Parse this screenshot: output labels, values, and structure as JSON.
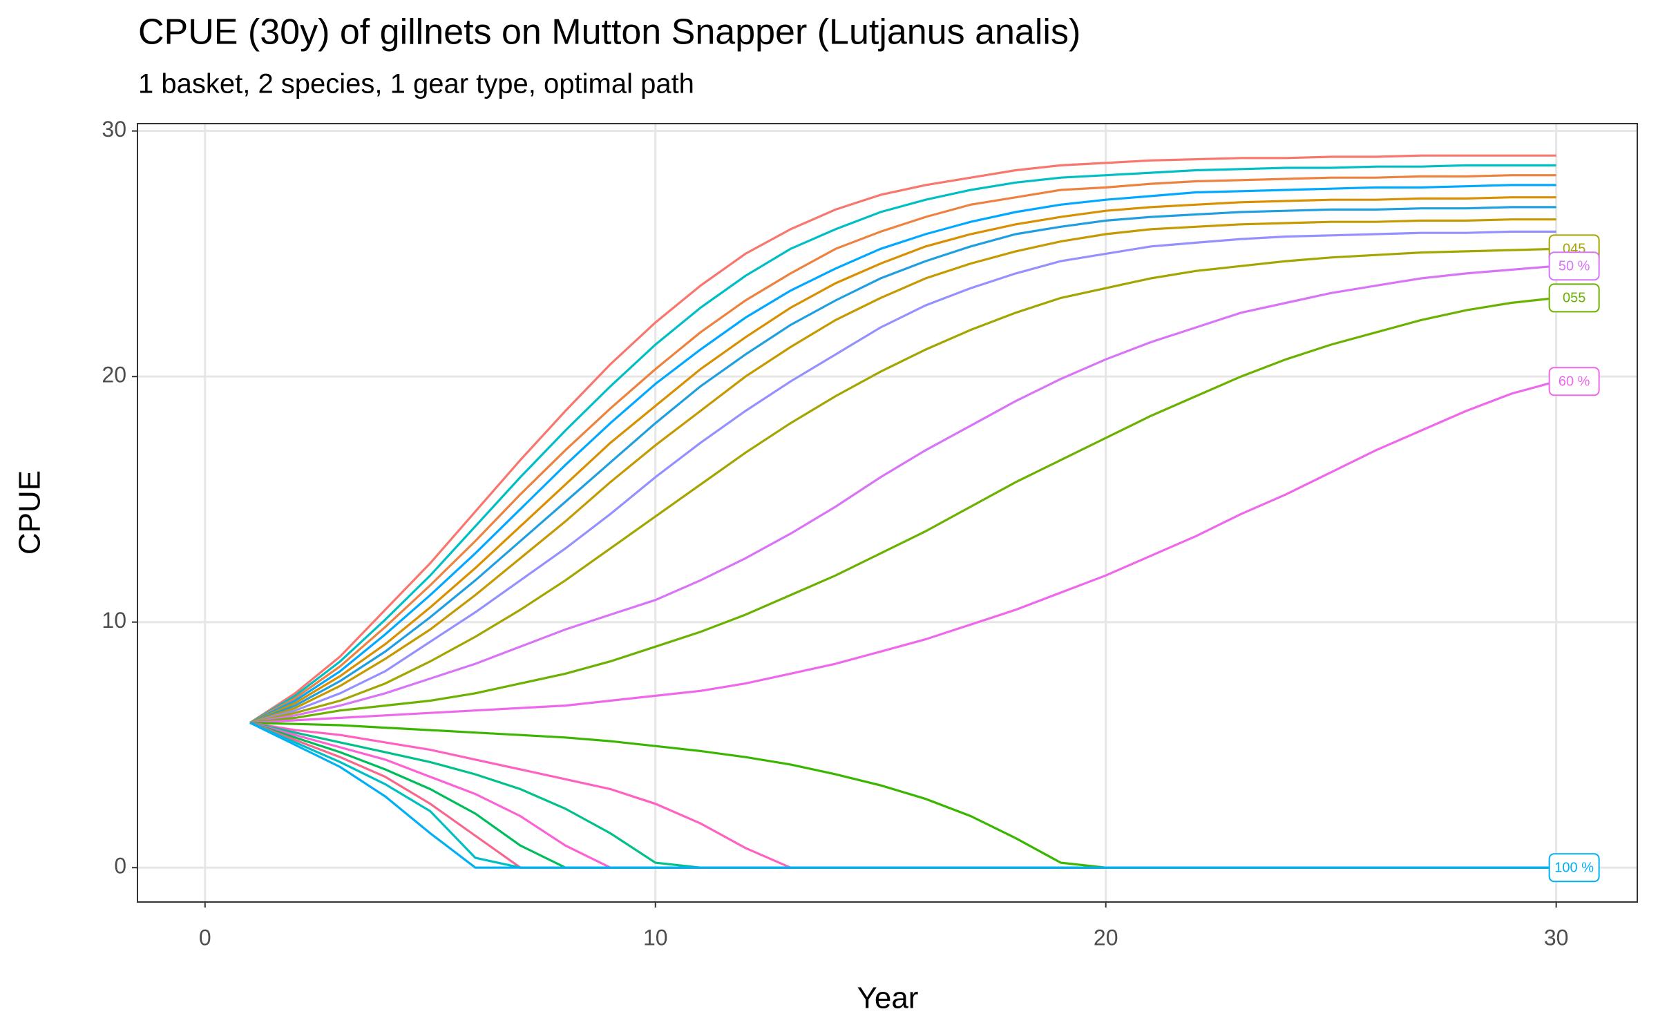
{
  "chart_data": {
    "type": "line",
    "title": "CPUE (30y) of gillnets on Mutton Snapper (Lutjanus analis)",
    "subtitle": "1 basket, 2 species, 1 gear type, optimal path",
    "x_label": "Year",
    "y_label": "CPUE",
    "xlim": [
      -1.5,
      31.8
    ],
    "xticks": [
      0,
      10,
      20,
      30
    ],
    "ylim": [
      -1.4,
      30.3
    ],
    "yticks": [
      0,
      10,
      20,
      30
    ],
    "grid": true,
    "x": [
      1,
      2,
      3,
      4,
      5,
      6,
      7,
      8,
      9,
      10,
      11,
      12,
      13,
      14,
      15,
      16,
      17,
      18,
      19,
      20,
      21,
      22,
      23,
      24,
      25,
      26,
      27,
      28,
      29,
      30
    ],
    "series": [
      {
        "color": "#f8766d",
        "values": [
          5.9,
          7.1,
          8.6,
          10.5,
          12.4,
          14.5,
          16.6,
          18.6,
          20.5,
          22.2,
          23.7,
          25.0,
          26.0,
          26.8,
          27.4,
          27.8,
          28.1,
          28.4,
          28.6,
          28.7,
          28.8,
          28.85,
          28.9,
          28.9,
          28.95,
          28.95,
          29.0,
          29.0,
          29.0,
          29.0
        ]
      },
      {
        "color": "#00bfc4",
        "values": [
          5.9,
          7.0,
          8.4,
          10.1,
          11.9,
          13.9,
          15.9,
          17.8,
          19.6,
          21.3,
          22.8,
          24.1,
          25.2,
          26.0,
          26.7,
          27.2,
          27.6,
          27.9,
          28.1,
          28.2,
          28.3,
          28.4,
          28.45,
          28.5,
          28.5,
          28.55,
          28.55,
          28.6,
          28.6,
          28.6
        ]
      },
      {
        "color": "#ed813e",
        "values": [
          5.9,
          6.9,
          8.2,
          9.8,
          11.5,
          13.3,
          15.2,
          17.0,
          18.7,
          20.3,
          21.8,
          23.1,
          24.2,
          25.2,
          25.9,
          26.5,
          27.0,
          27.3,
          27.6,
          27.7,
          27.85,
          27.95,
          28.0,
          28.05,
          28.1,
          28.1,
          28.15,
          28.15,
          28.2,
          28.2
        ]
      },
      {
        "color": "#00a9ff",
        "values": [
          5.9,
          6.8,
          8.0,
          9.5,
          11.1,
          12.8,
          14.6,
          16.4,
          18.1,
          19.7,
          21.1,
          22.4,
          23.5,
          24.4,
          25.2,
          25.8,
          26.3,
          26.7,
          27.0,
          27.2,
          27.35,
          27.5,
          27.55,
          27.6,
          27.65,
          27.7,
          27.7,
          27.75,
          27.8,
          27.8
        ]
      },
      {
        "color": "#d89000",
        "values": [
          5.9,
          6.7,
          7.8,
          9.1,
          10.6,
          12.2,
          13.9,
          15.6,
          17.3,
          18.8,
          20.3,
          21.6,
          22.8,
          23.8,
          24.6,
          25.3,
          25.8,
          26.2,
          26.5,
          26.75,
          26.9,
          27.0,
          27.1,
          27.15,
          27.2,
          27.2,
          27.25,
          27.25,
          27.3,
          27.3
        ]
      },
      {
        "color": "#1f9fe0",
        "values": [
          5.9,
          6.6,
          7.6,
          8.8,
          10.2,
          11.7,
          13.3,
          14.9,
          16.5,
          18.1,
          19.6,
          20.9,
          22.1,
          23.1,
          24.0,
          24.7,
          25.3,
          25.8,
          26.1,
          26.35,
          26.5,
          26.6,
          26.7,
          26.75,
          26.8,
          26.8,
          26.85,
          26.85,
          26.9,
          26.9
        ]
      },
      {
        "color": "#c59900",
        "values": [
          5.9,
          6.5,
          7.4,
          8.5,
          9.7,
          11.1,
          12.6,
          14.1,
          15.7,
          17.2,
          18.6,
          20.0,
          21.2,
          22.3,
          23.2,
          24.0,
          24.6,
          25.1,
          25.5,
          25.8,
          26.0,
          26.1,
          26.2,
          26.25,
          26.3,
          26.3,
          26.35,
          26.35,
          26.4,
          26.4
        ]
      },
      {
        "color": "#9590ff",
        "values": [
          5.9,
          6.4,
          7.1,
          8.0,
          9.2,
          10.4,
          11.7,
          13.0,
          14.4,
          15.9,
          17.3,
          18.6,
          19.8,
          20.9,
          22.0,
          22.9,
          23.6,
          24.2,
          24.7,
          25.0,
          25.3,
          25.45,
          25.6,
          25.7,
          25.75,
          25.8,
          25.85,
          25.85,
          25.9,
          25.9
        ]
      },
      {
        "name": "045",
        "color": "#a3a500",
        "values": [
          5.9,
          6.3,
          6.8,
          7.5,
          8.4,
          9.4,
          10.5,
          11.7,
          13.0,
          14.3,
          15.6,
          16.9,
          18.1,
          19.2,
          20.2,
          21.1,
          21.9,
          22.6,
          23.2,
          23.6,
          24.0,
          24.3,
          24.5,
          24.7,
          24.85,
          24.95,
          25.05,
          25.1,
          25.15,
          25.2
        ]
      },
      {
        "name": "50 %",
        "color": "#d874f5",
        "values": [
          5.9,
          6.2,
          6.6,
          7.1,
          7.7,
          8.3,
          9.0,
          9.7,
          10.3,
          10.9,
          11.7,
          12.6,
          13.6,
          14.7,
          15.9,
          17.0,
          18.0,
          19.0,
          19.9,
          20.7,
          21.4,
          22.0,
          22.6,
          23.0,
          23.4,
          23.7,
          24.0,
          24.2,
          24.35,
          24.5
        ]
      },
      {
        "name": "055",
        "color": "#6bb100",
        "values": [
          5.9,
          6.1,
          6.4,
          6.6,
          6.8,
          7.1,
          7.5,
          7.9,
          8.4,
          9.0,
          9.6,
          10.3,
          11.1,
          11.9,
          12.8,
          13.7,
          14.7,
          15.7,
          16.6,
          17.5,
          18.4,
          19.2,
          20.0,
          20.7,
          21.3,
          21.8,
          22.3,
          22.7,
          23.0,
          23.2
        ]
      },
      {
        "name": "60 %",
        "color": "#ef67eb",
        "values": [
          5.9,
          6.0,
          6.1,
          6.2,
          6.3,
          6.4,
          6.5,
          6.6,
          6.8,
          7.0,
          7.2,
          7.5,
          7.9,
          8.3,
          8.8,
          9.3,
          9.9,
          10.5,
          11.2,
          11.9,
          12.7,
          13.5,
          14.4,
          15.2,
          16.1,
          17.0,
          17.8,
          18.6,
          19.3,
          19.8
        ]
      },
      {
        "color": "#39b600",
        "values": [
          5.9,
          5.85,
          5.8,
          5.7,
          5.6,
          5.5,
          5.4,
          5.3,
          5.15,
          4.95,
          4.75,
          4.5,
          4.2,
          3.8,
          3.35,
          2.8,
          2.1,
          1.2,
          0.2,
          0,
          0,
          0,
          0,
          0,
          0,
          0,
          0,
          0,
          0,
          0
        ]
      },
      {
        "color": "#ff61c3",
        "values": [
          5.9,
          5.6,
          5.4,
          5.1,
          4.8,
          4.4,
          4.0,
          3.6,
          3.2,
          2.6,
          1.8,
          0.8,
          0,
          0,
          0,
          0,
          0,
          0,
          0,
          0,
          0,
          0,
          0,
          0,
          0,
          0,
          0,
          0,
          0,
          0
        ]
      },
      {
        "color": "#00c08b",
        "values": [
          5.9,
          5.5,
          5.1,
          4.7,
          4.3,
          3.8,
          3.2,
          2.4,
          1.4,
          0.2,
          0,
          0,
          0,
          0,
          0,
          0,
          0,
          0,
          0,
          0,
          0,
          0,
          0,
          0,
          0,
          0,
          0,
          0,
          0,
          0
        ]
      },
      {
        "color": "#fc61d5",
        "values": [
          5.9,
          5.4,
          4.9,
          4.4,
          3.7,
          3.0,
          2.1,
          0.9,
          0,
          0,
          0,
          0,
          0,
          0,
          0,
          0,
          0,
          0,
          0,
          0,
          0,
          0,
          0,
          0,
          0,
          0,
          0,
          0,
          0,
          0
        ]
      },
      {
        "color": "#00bd5c",
        "values": [
          5.9,
          5.3,
          4.7,
          4.0,
          3.2,
          2.2,
          0.9,
          0,
          0,
          0,
          0,
          0,
          0,
          0,
          0,
          0,
          0,
          0,
          0,
          0,
          0,
          0,
          0,
          0,
          0,
          0,
          0,
          0,
          0,
          0
        ]
      },
      {
        "color": "#f7668c",
        "values": [
          5.9,
          5.2,
          4.5,
          3.7,
          2.6,
          1.3,
          0,
          0,
          0,
          0,
          0,
          0,
          0,
          0,
          0,
          0,
          0,
          0,
          0,
          0,
          0,
          0,
          0,
          0,
          0,
          0,
          0,
          0,
          0,
          0
        ]
      },
      {
        "color": "#00bfc4",
        "values": [
          5.9,
          5.1,
          4.3,
          3.4,
          2.3,
          0.4,
          0,
          0,
          0,
          0,
          0,
          0,
          0,
          0,
          0,
          0,
          0,
          0,
          0,
          0,
          0,
          0,
          0,
          0,
          0,
          0,
          0,
          0,
          0,
          0
        ]
      },
      {
        "name": "100 %",
        "color": "#00b0f6",
        "values": [
          5.9,
          5.0,
          4.1,
          2.9,
          1.4,
          0,
          0,
          0,
          0,
          0,
          0,
          0,
          0,
          0,
          0,
          0,
          0,
          0,
          0,
          0,
          0,
          0,
          0,
          0,
          0,
          0,
          0,
          0,
          0,
          0
        ]
      }
    ]
  }
}
